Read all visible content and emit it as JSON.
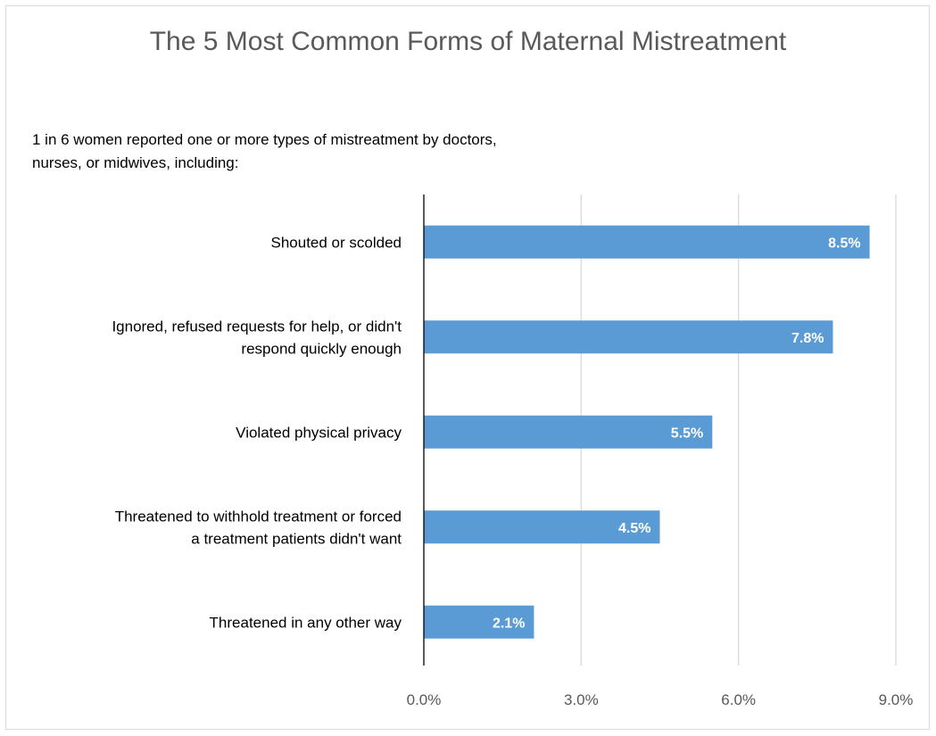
{
  "chart_data": {
    "type": "bar",
    "orientation": "horizontal",
    "title": "The 5 Most Common Forms of Maternal Mistreatment",
    "subtitle": "1 in 6 women reported one or more types of mistreatment by doctors,\nnurses, or midwives, including:",
    "categories": [
      [
        "Shouted or scolded"
      ],
      [
        "Ignored, refused requests for help, or didn't",
        "respond quickly enough"
      ],
      [
        "Violated physical privacy"
      ],
      [
        "Threatened to withhold treatment or forced",
        "a treatment patients didn't want"
      ],
      [
        "Threatened in any other way"
      ]
    ],
    "values": [
      8.5,
      7.8,
      5.5,
      4.5,
      2.1
    ],
    "value_labels": [
      "8.5%",
      "7.8%",
      "5.5%",
      "4.5%",
      "2.1%"
    ],
    "xlim": [
      0,
      9
    ],
    "xticks": [
      0,
      3,
      6,
      9
    ],
    "xtick_labels": [
      "0.0%",
      "3.0%",
      "6.0%",
      "9.0%"
    ],
    "grid": "vertical",
    "legend": "none",
    "bar_color": "#5b9bd5",
    "grid_color": "#d9d9d9",
    "axis_color": "#000000"
  }
}
